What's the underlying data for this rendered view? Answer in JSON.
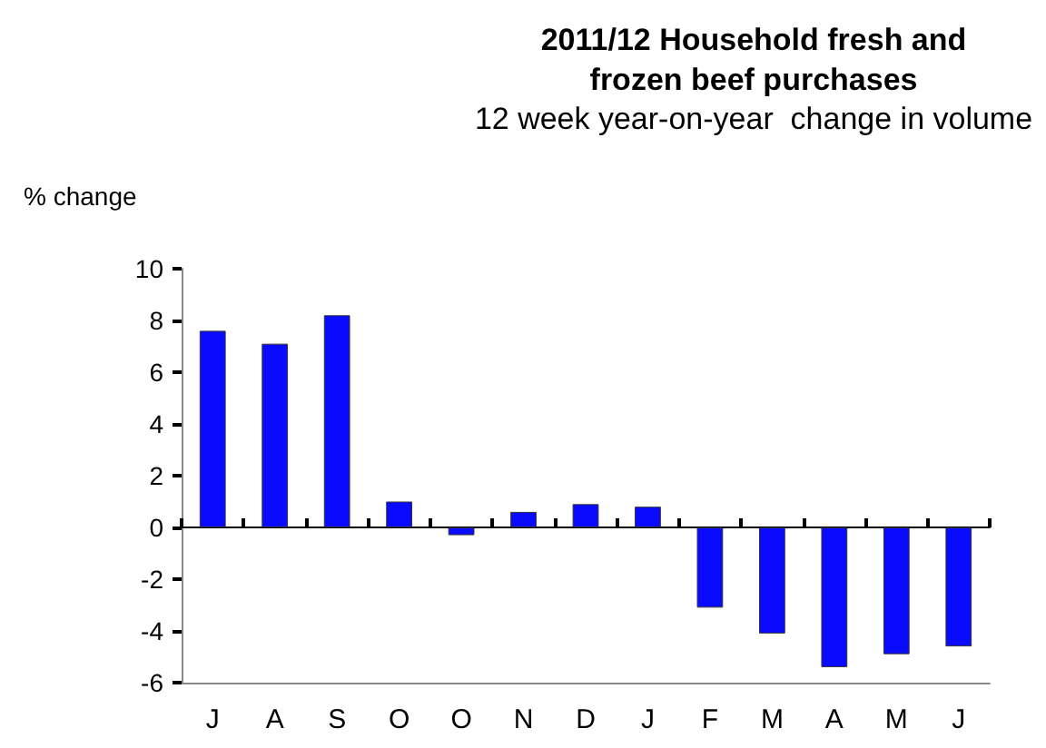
{
  "chart_data": {
    "type": "bar",
    "title": "2011/12 Household fresh and\nfrozen beef purchases",
    "subtitle": "12 week year-on-year  change in volume",
    "ylabel": "% change",
    "categories": [
      "J",
      "A",
      "S",
      "O",
      "O",
      "N",
      "D",
      "J",
      "F",
      "M",
      "A",
      "M",
      "J"
    ],
    "values": [
      7.6,
      7.1,
      8.2,
      1.0,
      -0.3,
      0.6,
      0.9,
      0.8,
      -3.1,
      -4.1,
      -5.4,
      -4.9,
      -4.6
    ],
    "color": "#0a0aff",
    "ylim": [
      -6,
      10
    ],
    "yticks": [
      -6,
      -4,
      -2,
      0,
      2,
      4,
      6,
      8,
      10
    ]
  }
}
